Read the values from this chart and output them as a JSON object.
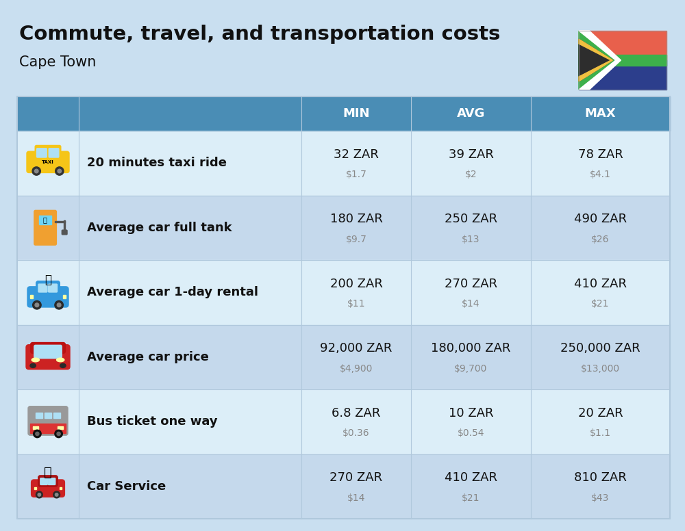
{
  "title": "Commute, travel, and transportation costs",
  "subtitle": "Cape Town",
  "bg_color": "#c9dff0",
  "header_bg": "#4a8db5",
  "header_text_color": "#ffffff",
  "row_bg_0": "#dceef8",
  "row_bg_1": "#c5d9ec",
  "col_headers": [
    "MIN",
    "AVG",
    "MAX"
  ],
  "rows": [
    {
      "label": "20 minutes taxi ride",
      "min_zar": "32 ZAR",
      "min_usd": "$1.7",
      "avg_zar": "39 ZAR",
      "avg_usd": "$2",
      "max_zar": "78 ZAR",
      "max_usd": "$4.1"
    },
    {
      "label": "Average car full tank",
      "min_zar": "180 ZAR",
      "min_usd": "$9.7",
      "avg_zar": "250 ZAR",
      "avg_usd": "$13",
      "max_zar": "490 ZAR",
      "max_usd": "$26"
    },
    {
      "label": "Average car 1-day rental",
      "min_zar": "200 ZAR",
      "min_usd": "$11",
      "avg_zar": "270 ZAR",
      "avg_usd": "$14",
      "max_zar": "410 ZAR",
      "max_usd": "$21"
    },
    {
      "label": "Average car price",
      "min_zar": "92,000 ZAR",
      "min_usd": "$4,900",
      "avg_zar": "180,000 ZAR",
      "avg_usd": "$9,700",
      "max_zar": "250,000 ZAR",
      "max_usd": "$13,000"
    },
    {
      "label": "Bus ticket one way",
      "min_zar": "6.8 ZAR",
      "min_usd": "$0.36",
      "avg_zar": "10 ZAR",
      "avg_usd": "$0.54",
      "max_zar": "20 ZAR",
      "max_usd": "$1.1"
    },
    {
      "label": "Car Service",
      "min_zar": "270 ZAR",
      "min_usd": "$14",
      "avg_zar": "410 ZAR",
      "avg_usd": "$21",
      "max_zar": "810 ZAR",
      "max_usd": "$43"
    }
  ],
  "title_fontsize": 21,
  "subtitle_fontsize": 15,
  "header_fontsize": 13,
  "label_fontsize": 13,
  "value_fontsize": 13,
  "usd_fontsize": 10,
  "flag_colors": {
    "red": "#e8604c",
    "green_outer": "#3db04b",
    "green_inner": "#3db04b",
    "blue": "#2c3e8c",
    "black": "#2d2d2d",
    "gold": "#f0c040",
    "white": "#ffffff"
  }
}
